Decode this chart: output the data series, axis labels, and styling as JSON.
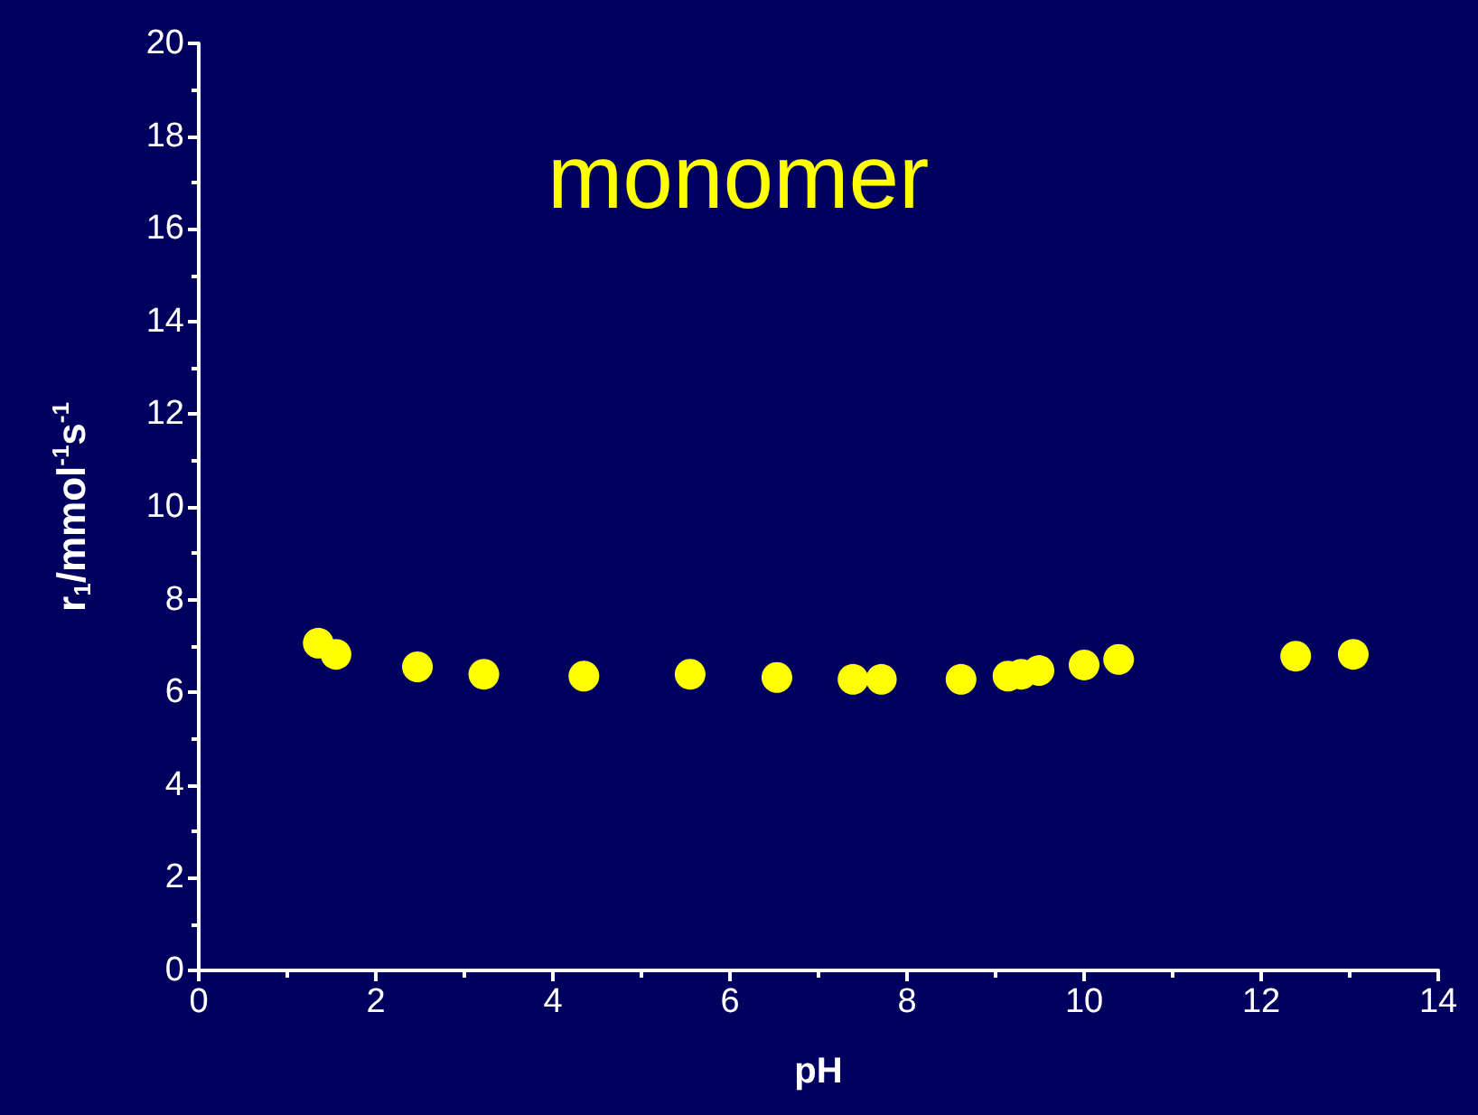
{
  "chart_data": {
    "type": "scatter",
    "title": "monomer",
    "xlabel": "pH",
    "ylabel": "r$_{1}$/mmol$^{-1}$s$^{-1}$",
    "x": [
      1.35,
      1.55,
      2.47,
      3.22,
      4.35,
      5.55,
      6.53,
      7.39,
      7.71,
      8.61,
      9.14,
      9.29,
      9.49,
      10.0,
      10.39,
      12.39,
      13.04
    ],
    "series": [
      {
        "color": "#ffff00",
        "values": [
          7.06,
          6.82,
          6.55,
          6.39,
          6.35,
          6.39,
          6.32,
          6.28,
          6.28,
          6.28,
          6.35,
          6.39,
          6.47,
          6.59,
          6.71,
          6.78,
          6.82
        ]
      }
    ],
    "xlim": [
      0,
      14
    ],
    "xticks": [
      0,
      2,
      4,
      6,
      8,
      10,
      12,
      14
    ],
    "ylim": [
      0,
      20
    ],
    "yticks": [
      0,
      2,
      4,
      6,
      8,
      10,
      12,
      14,
      16,
      18,
      20
    ],
    "grid": false,
    "marker": "circle"
  }
}
